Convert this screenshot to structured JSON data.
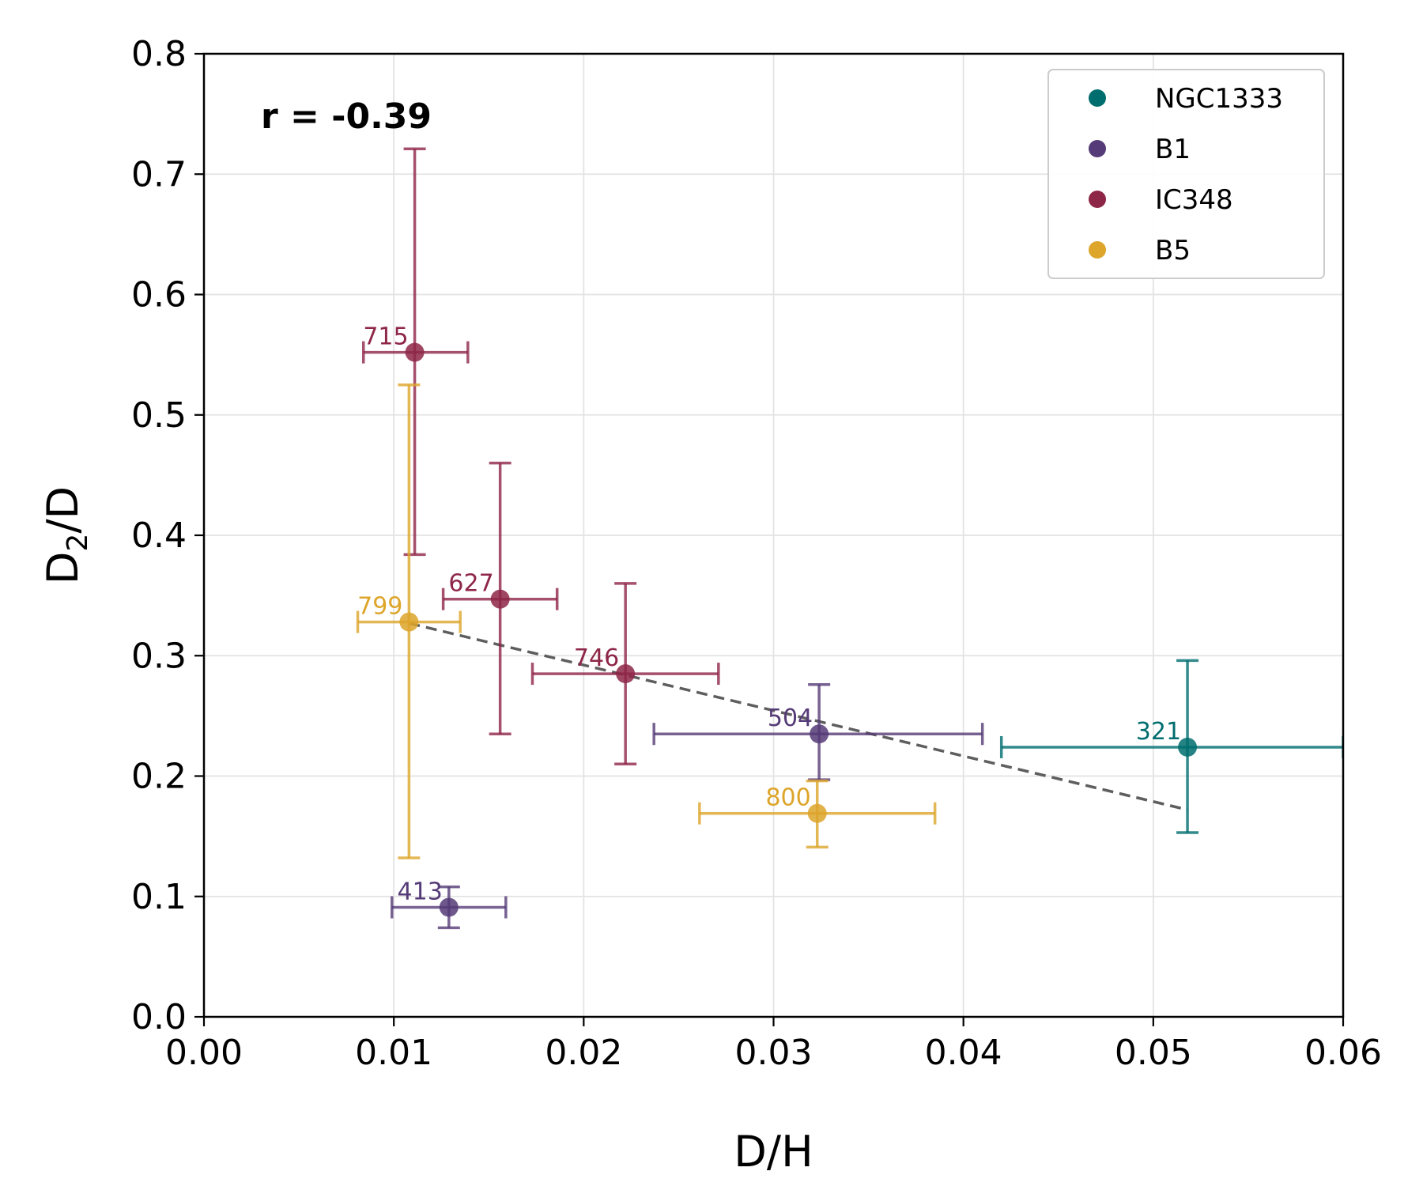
{
  "chart_data": {
    "type": "scatter",
    "xlabel": "D/H",
    "ylabel_main": "D",
    "ylabel_sub": "2",
    "ylabel_tail": "/D",
    "xlim": [
      0.0,
      0.06
    ],
    "ylim": [
      0.0,
      0.8
    ],
    "x_ticks": [
      "0.00",
      "0.01",
      "0.02",
      "0.03",
      "0.04",
      "0.05",
      "0.06"
    ],
    "y_ticks": [
      "0.0",
      "0.1",
      "0.2",
      "0.3",
      "0.4",
      "0.5",
      "0.6",
      "0.7",
      "0.8"
    ],
    "grid": true,
    "legend_position": "top-right",
    "annotation": "r = -0.39",
    "series": [
      {
        "name": "NGC1333",
        "color": "#006d6f",
        "points": [
          {
            "label": "321",
            "x": 0.0518,
            "y": 0.224,
            "x_err_minus": 0.0098,
            "x_err_plus": 0.0082,
            "y_err_minus": 0.071,
            "y_err_plus": 0.072
          }
        ]
      },
      {
        "name": "B1",
        "color": "#553b77",
        "points": [
          {
            "label": "504",
            "x": 0.0324,
            "y": 0.235,
            "x_err_minus": 0.0087,
            "x_err_plus": 0.0086,
            "y_err_minus": 0.038,
            "y_err_plus": 0.041
          },
          {
            "label": "413",
            "x": 0.0129,
            "y": 0.091,
            "x_err_minus": 0.003,
            "x_err_plus": 0.003,
            "y_err_minus": 0.017,
            "y_err_plus": 0.017
          }
        ]
      },
      {
        "name": "IC348",
        "color": "#8e2648",
        "points": [
          {
            "label": "715",
            "x": 0.0111,
            "y": 0.552,
            "x_err_minus": 0.0027,
            "x_err_plus": 0.0028,
            "y_err_minus": 0.168,
            "y_err_plus": 0.169
          },
          {
            "label": "627",
            "x": 0.0156,
            "y": 0.347,
            "x_err_minus": 0.003,
            "x_err_plus": 0.003,
            "y_err_minus": 0.112,
            "y_err_plus": 0.113
          },
          {
            "label": "746",
            "x": 0.0222,
            "y": 0.285,
            "x_err_minus": 0.0049,
            "x_err_plus": 0.0049,
            "y_err_minus": 0.075,
            "y_err_plus": 0.075
          }
        ]
      },
      {
        "name": "B5",
        "color": "#dda52a",
        "points": [
          {
            "label": "799",
            "x": 0.0108,
            "y": 0.328,
            "x_err_minus": 0.0027,
            "x_err_plus": 0.0027,
            "y_err_minus": 0.196,
            "y_err_plus": 0.197
          },
          {
            "label": "800",
            "x": 0.0323,
            "y": 0.169,
            "x_err_minus": 0.0062,
            "x_err_plus": 0.0062,
            "y_err_minus": 0.028,
            "y_err_plus": 0.027
          }
        ]
      }
    ],
    "trend_line": {
      "style": "dashed",
      "color": "#555555",
      "x_start": 0.0108,
      "y_start": 0.327,
      "x_end": 0.0518,
      "y_end": 0.172
    }
  }
}
